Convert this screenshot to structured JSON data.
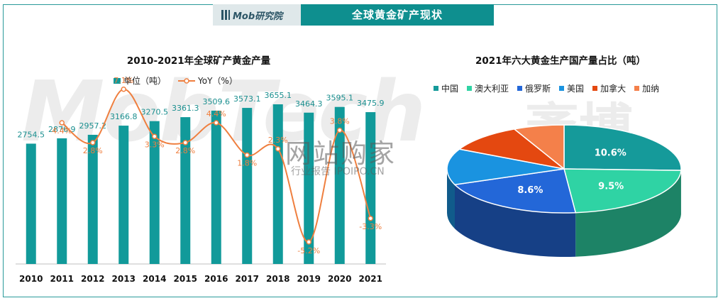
{
  "header": {
    "logo_text": "Mob研究院",
    "title": "全球黄金矿产现状"
  },
  "watermark": {
    "brand": "MobTech",
    "brand_cn": "袤博",
    "site": "网站购家",
    "site_sub": "行业报告 IPOIPO.CN"
  },
  "chart_data": [
    {
      "type": "bar",
      "title": "2010-2021年全球矿产黄金产量",
      "categories": [
        "2010",
        "2011",
        "2012",
        "2013",
        "2014",
        "2015",
        "2016",
        "2017",
        "2018",
        "2019",
        "2020",
        "2021"
      ],
      "series": [
        {
          "name": "单位（吨）",
          "type": "bar",
          "color": "#119a9a",
          "values": [
            2754.5,
            2876.9,
            2957.2,
            3166.8,
            3270.5,
            3361.3,
            3509.6,
            3573.1,
            3655.1,
            3464.3,
            3595.1,
            3475.9
          ],
          "labels": [
            "2754.5",
            "2876.9",
            "2957.2",
            "3166.8",
            "3270.5",
            "3361.3",
            "3509.6",
            "3573.1",
            "3655.1",
            "3464.3",
            "3595.1",
            "3475.9"
          ]
        },
        {
          "name": "YoY（%）",
          "type": "line",
          "color": "#ef7f3f",
          "values": [
            null,
            4.4,
            2.8,
            7.1,
            3.3,
            2.8,
            4.4,
            1.8,
            2.3,
            -5.2,
            3.8,
            -3.3
          ],
          "labels": [
            "",
            "4.4%",
            "2.8%",
            "7.1%",
            "3.3%",
            "2.8%",
            "4.4%",
            "1.8%",
            "2.3%",
            "-5.2%",
            "3.8%",
            "-3.3%"
          ]
        }
      ],
      "legend_position": "top"
    },
    {
      "type": "pie",
      "title": "2021年六大黄金生产国产量占比（吨）",
      "legend_position": "top",
      "slices": [
        {
          "name": "中国",
          "value": 10.6,
          "label": "10.6%",
          "color": "#159a9a"
        },
        {
          "name": "澳大利亚",
          "value": 9.5,
          "label": "9.5%",
          "color": "#2fd3a4"
        },
        {
          "name": "俄罗斯",
          "value": 8.6,
          "label": "8.6%",
          "color": "#2367d8"
        },
        {
          "name": "美国",
          "value": 5.5,
          "label": "",
          "color": "#1a93e0"
        },
        {
          "name": "加拿大",
          "value": 4.4,
          "label": "",
          "color": "#e44810"
        },
        {
          "name": "加纳",
          "value": 2.9,
          "label": "",
          "color": "#f4804a"
        }
      ]
    }
  ]
}
